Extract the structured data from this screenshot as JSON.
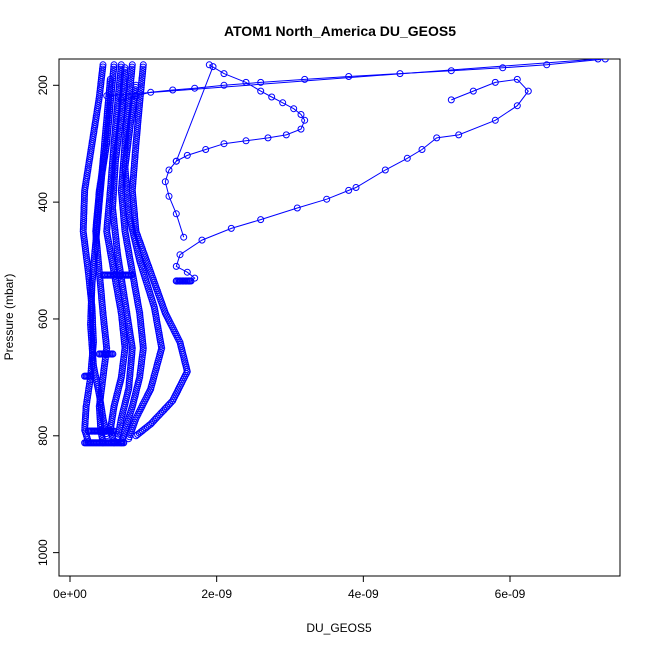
{
  "chart_data": {
    "type": "scatter",
    "title": "ATOM1 North_America DU_GEOS5",
    "xlabel": "DU_GEOS5",
    "ylabel": "Pressure (mbar)",
    "xlim": [
      -1.5e-10,
      7.5e-09
    ],
    "ylim": [
      1040,
      155
    ],
    "y_inverted": true,
    "x_ticks": [
      0,
      2e-09,
      4e-09,
      6e-09
    ],
    "x_tick_labels": [
      "0e+00",
      "2e-09",
      "4e-09",
      "6e-09"
    ],
    "y_ticks": [
      200,
      400,
      600,
      800,
      1000
    ],
    "y_tick_labels": [
      "200",
      "400",
      "600",
      "800",
      "1000"
    ],
    "marker": "open-circle",
    "color": "#0000ff",
    "grid": false,
    "series": [
      {
        "x": [
          5.2e-09,
          5.5e-09,
          5.8e-09,
          6.1e-09,
          6.25e-09,
          6.1e-09,
          5.8e-09,
          5.3e-09,
          5e-09,
          4.8e-09,
          4.6e-09,
          4.3e-09,
          3.9e-09,
          3.8e-09,
          3.5e-09,
          3.1e-09,
          2.6e-09,
          2.2e-09,
          1.8e-09,
          1.5e-09,
          1.45e-09,
          1.6e-09,
          1.7e-09,
          1.65e-09,
          1.5e-09
        ],
        "y": [
          225,
          210,
          195,
          190,
          210,
          235,
          260,
          285,
          290,
          310,
          325,
          345,
          375,
          380,
          395,
          410,
          430,
          445,
          465,
          490,
          510,
          520,
          530,
          535,
          535
        ]
      },
      {
        "x": [
          7.3e-09,
          6.5e-09,
          5.9e-09,
          5.2e-09,
          4.5e-09,
          3.8e-09,
          3.2e-09,
          2.6e-09,
          2.1e-09,
          1.7e-09,
          1.4e-09,
          1.1e-09,
          9e-10,
          7e-10
        ],
        "y": [
          155,
          165,
          170,
          175,
          180,
          185,
          190,
          195,
          200,
          205,
          208,
          212,
          218,
          225
        ]
      },
      {
        "x": [
          1.9e-09,
          2.1e-09,
          2.4e-09,
          2.6e-09,
          2.75e-09,
          2.9e-09,
          3.05e-09,
          3.15e-09,
          3.2e-09,
          3.15e-09,
          2.95e-09,
          2.7e-09,
          2.4e-09,
          2.1e-09,
          1.85e-09,
          1.6e-09,
          1.45e-09,
          1.35e-09,
          1.3e-09,
          1.35e-09,
          1.45e-09,
          1.55e-09
        ],
        "y": [
          165,
          180,
          195,
          210,
          220,
          230,
          240,
          250,
          260,
          275,
          285,
          290,
          295,
          300,
          310,
          320,
          330,
          345,
          365,
          390,
          420,
          460
        ]
      },
      {
        "x": [
          1.95e-09,
          1.45e-09
        ],
        "y": [
          168,
          330
        ]
      },
      {
        "x": [
          7.2e-09,
          5e-10
        ],
        "y": [
          155,
          218
        ]
      }
    ],
    "band_profiles": [
      {
        "x": [
          4.5e-10,
          4e-10,
          3e-10,
          2e-10,
          1.8e-10,
          2.5e-10,
          3e-10,
          3.2e-10,
          2.8e-10,
          2.2e-10,
          2e-10,
          2.5e-10
        ],
        "y": [
          165,
          220,
          300,
          380,
          450,
          520,
          580,
          640,
          700,
          750,
          790,
          810
        ]
      },
      {
        "x": [
          6e-10,
          5.5e-10,
          5e-10,
          4e-10,
          3.5e-10,
          4e-10,
          4.5e-10,
          5e-10,
          4.5e-10,
          4e-10,
          4.2e-10,
          4.5e-10
        ],
        "y": [
          165,
          230,
          300,
          380,
          450,
          520,
          590,
          650,
          700,
          750,
          790,
          812
        ]
      },
      {
        "x": [
          7e-10,
          6.5e-10,
          6e-10,
          5.5e-10,
          5e-10,
          6e-10,
          7e-10,
          7.5e-10,
          7e-10,
          6e-10,
          5.5e-10,
          6e-10
        ],
        "y": [
          165,
          230,
          300,
          380,
          450,
          520,
          590,
          650,
          700,
          750,
          790,
          812
        ]
      },
      {
        "x": [
          8.5e-10,
          8e-10,
          7.5e-10,
          7e-10,
          7.5e-10,
          8.5e-10,
          9.5e-10,
          1e-09,
          9.5e-10,
          8.5e-10,
          7.5e-10,
          7e-10
        ],
        "y": [
          165,
          230,
          300,
          380,
          450,
          520,
          590,
          650,
          700,
          750,
          790,
          812
        ]
      },
      {
        "x": [
          1e-09,
          9.5e-10,
          9e-10,
          8.5e-10,
          9e-10,
          1.1e-09,
          1.3e-09,
          1.5e-09,
          1.6e-09,
          1.4e-09,
          1.1e-09,
          9e-10
        ],
        "y": [
          165,
          230,
          300,
          380,
          450,
          520,
          590,
          640,
          690,
          740,
          780,
          800
        ]
      },
      {
        "x": [
          5.5e-10,
          5e-10,
          4.5e-10,
          4e-10,
          3.5e-10,
          3e-10,
          2.8e-10,
          3.2e-10,
          4e-10,
          4.5e-10,
          5e-10
        ],
        "y": [
          190,
          260,
          330,
          400,
          470,
          540,
          610,
          680,
          730,
          770,
          800
        ]
      },
      {
        "x": [
          7.5e-10,
          7e-10,
          6.2e-10,
          5.8e-10,
          6.5e-10,
          7.5e-10,
          8.5e-10,
          8e-10,
          7e-10,
          6.5e-10
        ],
        "y": [
          170,
          250,
          330,
          410,
          490,
          570,
          650,
          720,
          770,
          805
        ]
      },
      {
        "x": [
          9e-10,
          8.2e-10,
          7.5e-10,
          8e-10,
          9.5e-10,
          1.15e-09,
          1.25e-09,
          1.1e-09,
          9e-10,
          8e-10
        ],
        "y": [
          200,
          270,
          340,
          420,
          500,
          580,
          650,
          720,
          770,
          805
        ]
      }
    ],
    "thick_segments": [
      {
        "x": [
          2e-10,
          7.5e-10
        ],
        "y": 812
      },
      {
        "x": [
          2.5e-10,
          6e-10
        ],
        "y": 792
      },
      {
        "x": [
          4.5e-10,
          8.5e-10
        ],
        "y": 525
      },
      {
        "x": [
          1.45e-09,
          1.65e-09
        ],
        "y": 535
      },
      {
        "x": [
          4e-10,
          6e-10
        ],
        "y": 660
      },
      {
        "x": [
          2e-10,
          3e-10
        ],
        "y": 698
      }
    ]
  }
}
